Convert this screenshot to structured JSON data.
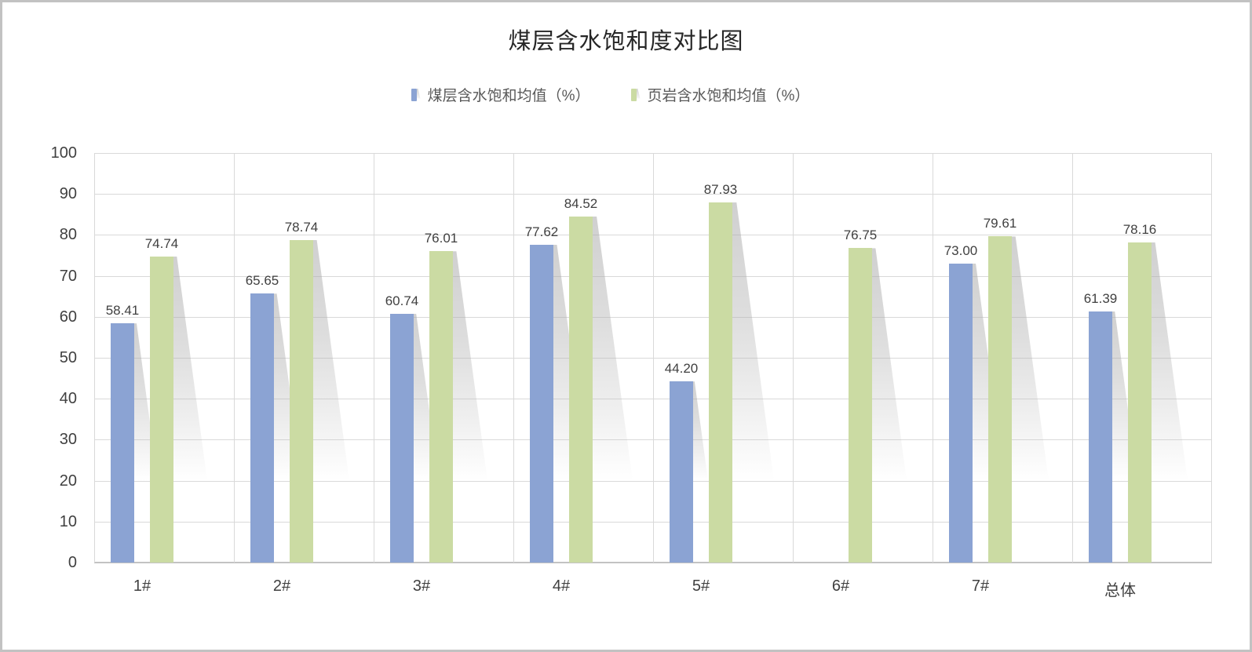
{
  "title": "煤层含水饱和度对比图",
  "legend": {
    "items": [
      {
        "label": "煤层含水饱和均值（%）",
        "color": "#8BA3D3"
      },
      {
        "label": "页岩含水饱和均值（%）",
        "color": "#CBDBA3"
      }
    ]
  },
  "chart_data": {
    "type": "bar",
    "title": "煤层含水饱和度对比图",
    "categories": [
      "1#",
      "2#",
      "3#",
      "4#",
      "5#",
      "6#",
      "7#",
      "总体"
    ],
    "series": [
      {
        "name": "煤层含水饱和均值（%）",
        "color": "#8BA3D3",
        "values": [
          58.41,
          65.65,
          60.74,
          77.62,
          44.2,
          null,
          73.0,
          61.39
        ]
      },
      {
        "name": "页岩含水饱和均值（%）",
        "color": "#CBDBA3",
        "values": [
          74.74,
          78.74,
          76.01,
          84.52,
          87.93,
          76.75,
          79.61,
          78.16
        ]
      }
    ],
    "xlabel": "",
    "ylabel": "",
    "ylim": [
      0,
      100
    ],
    "ytick_step": 10,
    "yticks": [
      0,
      10,
      20,
      30,
      40,
      50,
      60,
      70,
      80,
      90,
      100
    ],
    "grid": true,
    "legend_position": "top",
    "data_label_decimals": 2,
    "shadow_effect": true
  },
  "colors": {
    "grid": "#D9D9D9",
    "axis_line": "#C3C3C3",
    "text": "#404040",
    "legend_text": "#595959",
    "title_text": "#262626",
    "frame_border": "#C2C2C2",
    "shadow": "#ABABAB"
  }
}
